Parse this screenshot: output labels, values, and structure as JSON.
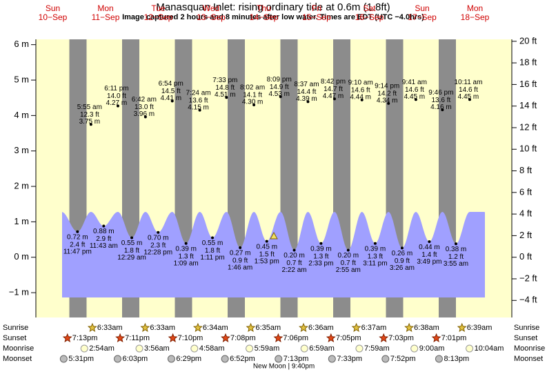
{
  "chart_data": {
    "type": "tide",
    "title": "Manasquan Inlet: rising  ordinary tide at 0.6m (1.8ft)",
    "subtitle": "Image captured 2 hours and 8 minutes after low water. Times are EDT (UTC −4.0hrs)",
    "ylim": [
      -1.7,
      6.15
    ],
    "yticks": [
      {
        "value": -1,
        "label": "−1 m"
      },
      {
        "value": 0,
        "label": "0 m"
      },
      {
        "value": 1,
        "label": "1 m"
      },
      {
        "value": 2,
        "label": "2 m"
      },
      {
        "value": 3,
        "label": "3 m"
      },
      {
        "value": 4,
        "label": "4 m"
      },
      {
        "value": 5,
        "label": "5 m"
      },
      {
        "value": 6,
        "label": "6 m"
      }
    ],
    "y2lim": [
      -5.58,
      20.18
    ],
    "y2ticks": [
      {
        "value": -4,
        "label": "−4 ft"
      },
      {
        "value": -2,
        "label": "−2 ft"
      },
      {
        "value": 0,
        "label": "0 ft"
      },
      {
        "value": 2,
        "label": "2 ft"
      },
      {
        "value": 4,
        "label": "4 ft"
      },
      {
        "value": 6,
        "label": "6 ft"
      },
      {
        "value": 8,
        "label": "8 ft"
      },
      {
        "value": 10,
        "label": "10 ft"
      },
      {
        "value": 12,
        "label": "12 ft"
      },
      {
        "value": 14,
        "label": "14 ft"
      },
      {
        "value": 16,
        "label": "16 ft"
      },
      {
        "value": 18,
        "label": "18 ft"
      },
      {
        "value": 20,
        "label": "20 ft"
      }
    ],
    "row_labels": {
      "sunrise": "Sunrise",
      "sunset": "Sunset",
      "moonrise": "Moonrise",
      "moonset": "Moonset"
    },
    "days": [
      {
        "weekday": "Sun",
        "date": "10−Sep",
        "tides": [
          {
            "kind": "low",
            "time": "11:47 pm",
            "m": 0.72,
            "m_label": "0.72 m",
            "ft": 2.4,
            "ft_label": "2.4 ft"
          }
        ],
        "sunset": "7:13pm",
        "moonset": "5:31pm"
      },
      {
        "weekday": "Mon",
        "date": "11−Sep",
        "tides": [
          {
            "kind": "high",
            "time": "5:55 am",
            "m": 3.75,
            "m_label": "3.75 m",
            "ft": 12.3,
            "ft_label": "12.3 ft"
          },
          {
            "kind": "low",
            "time": "11:43 am",
            "m": 0.88,
            "m_label": "0.88 m",
            "ft": 2.9,
            "ft_label": "2.9 ft"
          },
          {
            "kind": "high",
            "time": "6:11 pm",
            "m": 4.27,
            "m_label": "4.27 m",
            "ft": 14.0,
            "ft_label": "14.0 ft"
          }
        ],
        "sunrise": "6:33am",
        "sunset": "7:11pm",
        "moonrise": "2:54am",
        "moonset": "6:03pm"
      },
      {
        "weekday": "Tue",
        "date": "12−Sep",
        "tides": [
          {
            "kind": "low",
            "time": "12:29 am",
            "m": 0.55,
            "m_label": "0.55 m",
            "ft": 1.8,
            "ft_label": "1.8 ft"
          },
          {
            "kind": "high",
            "time": "6:42 am",
            "m": 3.96,
            "m_label": "3.96 m",
            "ft": 13.0,
            "ft_label": "13.0 ft"
          },
          {
            "kind": "low",
            "time": "12:28 pm",
            "m": 0.7,
            "m_label": "0.70 m",
            "ft": 2.3,
            "ft_label": "2.3 ft"
          },
          {
            "kind": "high",
            "time": "6:54 pm",
            "m": 4.41,
            "m_label": "4.41 m",
            "ft": 14.5,
            "ft_label": "14.5 ft"
          }
        ],
        "sunrise": "6:33am",
        "sunset": "7:10pm",
        "moonrise": "3:56am",
        "moonset": "6:29pm"
      },
      {
        "weekday": "Wed",
        "date": "13−Sep",
        "tides": [
          {
            "kind": "low",
            "time": "1:09 am",
            "m": 0.39,
            "m_label": "0.39 m",
            "ft": 1.3,
            "ft_label": "1.3 ft"
          },
          {
            "kind": "high",
            "time": "7:24 am",
            "m": 4.15,
            "m_label": "4.15 m",
            "ft": 13.6,
            "ft_label": "13.6 ft"
          },
          {
            "kind": "low",
            "time": "1:11 pm",
            "m": 0.55,
            "m_label": "0.55 m",
            "ft": 1.8,
            "ft_label": "1.8 ft"
          },
          {
            "kind": "high",
            "time": "7:33 pm",
            "m": 4.51,
            "m_label": "4.51 m",
            "ft": 14.8,
            "ft_label": "14.8 ft"
          }
        ],
        "sunrise": "6:34am",
        "sunset": "7:08pm",
        "moonrise": "4:58am",
        "moonset": "6:52pm"
      },
      {
        "weekday": "Thu",
        "date": "14−Sep",
        "tides": [
          {
            "kind": "low",
            "time": "1:46 am",
            "m": 0.27,
            "m_label": "0.27 m",
            "ft": 0.9,
            "ft_label": "0.9 ft"
          },
          {
            "kind": "high",
            "time": "8:02 am",
            "m": 4.3,
            "m_label": "4.30 m",
            "ft": 14.1,
            "ft_label": "14.1 ft"
          },
          {
            "kind": "low",
            "time": "1:53 pm",
            "m": 0.45,
            "m_label": "0.45 m",
            "ft": 1.5,
            "ft_label": "1.5 ft"
          },
          {
            "kind": "high",
            "time": "8:09 pm",
            "m": 4.53,
            "m_label": "4.53 m",
            "ft": 14.9,
            "ft_label": "14.9 ft"
          }
        ],
        "sunrise": "6:35am",
        "sunset": "7:06pm",
        "moonrise": "5:59am",
        "moonset": "7:13pm",
        "moon_phase": "New Moon | 9:40pm"
      },
      {
        "weekday": "Fri",
        "date": "15−Sep",
        "tides": [
          {
            "kind": "low",
            "time": "2:22 am",
            "m": 0.2,
            "m_label": "0.20 m",
            "ft": 0.7,
            "ft_label": "0.7 ft"
          },
          {
            "kind": "high",
            "time": "8:37 am",
            "m": 4.39,
            "m_label": "4.39 m",
            "ft": 14.4,
            "ft_label": "14.4 ft"
          },
          {
            "kind": "low",
            "time": "2:33 pm",
            "m": 0.39,
            "m_label": "0.39 m",
            "ft": 1.3,
            "ft_label": "1.3 ft"
          },
          {
            "kind": "high",
            "time": "8:42 pm",
            "m": 4.47,
            "m_label": "4.47 m",
            "ft": 14.7,
            "ft_label": "14.7 ft"
          }
        ],
        "sunrise": "6:36am",
        "sunset": "7:05pm",
        "moonrise": "6:59am",
        "moonset": "7:33pm"
      },
      {
        "weekday": "Sat",
        "date": "16−Sep",
        "tides": [
          {
            "kind": "low",
            "time": "2:55 am",
            "m": 0.2,
            "m_label": "0.20 m",
            "ft": 0.7,
            "ft_label": "0.7 ft"
          },
          {
            "kind": "high",
            "time": "9:10 am",
            "m": 4.44,
            "m_label": "4.44 m",
            "ft": 14.6,
            "ft_label": "14.6 ft"
          },
          {
            "kind": "low",
            "time": "3:11 pm",
            "m": 0.39,
            "m_label": "0.39 m",
            "ft": 1.3,
            "ft_label": "1.3 ft"
          },
          {
            "kind": "high",
            "time": "9:14 pm",
            "m": 4.34,
            "m_label": "4.34 m",
            "ft": 14.2,
            "ft_label": "14.2 ft"
          }
        ],
        "sunrise": "6:37am",
        "sunset": "7:03pm",
        "moonrise": "7:59am",
        "moonset": "7:52pm"
      },
      {
        "weekday": "Sun",
        "date": "17−Sep",
        "tides": [
          {
            "kind": "low",
            "time": "3:26 am",
            "m": 0.26,
            "m_label": "0.26 m",
            "ft": 0.9,
            "ft_label": "0.9 ft"
          },
          {
            "kind": "high",
            "time": "9:41 am",
            "m": 4.45,
            "m_label": "4.45 m",
            "ft": 14.6,
            "ft_label": "14.6 ft"
          },
          {
            "kind": "low",
            "time": "3:49 pm",
            "m": 0.44,
            "m_label": "0.44 m",
            "ft": 1.4,
            "ft_label": "1.4 ft"
          },
          {
            "kind": "high",
            "time": "9:46 pm",
            "m": 4.16,
            "m_label": "4.16 m",
            "ft": 13.6,
            "ft_label": "13.6 ft"
          }
        ],
        "sunrise": "6:38am",
        "sunset": "7:01pm",
        "moonrise": "9:00am",
        "moonset": "8:13pm"
      },
      {
        "weekday": "Mon",
        "date": "18−Sep",
        "tides": [
          {
            "kind": "low",
            "time": "3:55 am",
            "m": 0.38,
            "m_label": "0.38 m",
            "ft": 1.2,
            "ft_label": "1.2 ft"
          },
          {
            "kind": "high",
            "time": "10:11 am",
            "m": 4.45,
            "m_label": "4.45 m",
            "ft": 14.6,
            "ft_label": "14.6 ft"
          }
        ],
        "sunrise": "6:39am",
        "moonrise": "10:04am"
      }
    ]
  }
}
